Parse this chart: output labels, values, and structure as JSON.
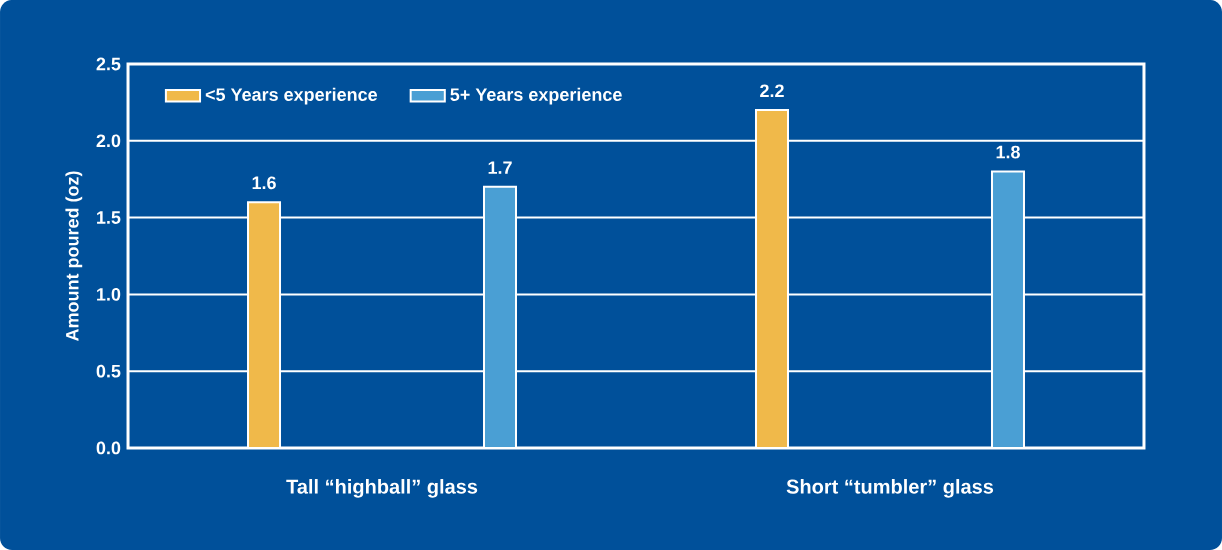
{
  "chart_data": {
    "type": "bar",
    "ylabel": "Amount poured (oz)",
    "categories": [
      "Tall “highball” glass",
      "Short “tumbler” glass"
    ],
    "series": [
      {
        "name": "<5 Years experience",
        "color": "#f0b94a",
        "values": [
          1.6,
          2.2
        ],
        "value_labels": [
          "1.6",
          "2.2"
        ]
      },
      {
        "name": "5+ Years experience",
        "color": "#4a9fd4",
        "values": [
          1.7,
          1.8
        ],
        "value_labels": [
          "1.7",
          "1.8"
        ]
      }
    ],
    "ylim": [
      0,
      2.5
    ],
    "yticks": [
      {
        "value": 0,
        "label": "0.0"
      },
      {
        "value": 0.5,
        "label": "0.5"
      },
      {
        "value": 1,
        "label": "1.0"
      },
      {
        "value": 1.5,
        "label": "1.5"
      },
      {
        "value": 2,
        "label": "2.0"
      },
      {
        "value": 2.5,
        "label": "2.5"
      }
    ],
    "grid": "y",
    "legend": "top left"
  }
}
